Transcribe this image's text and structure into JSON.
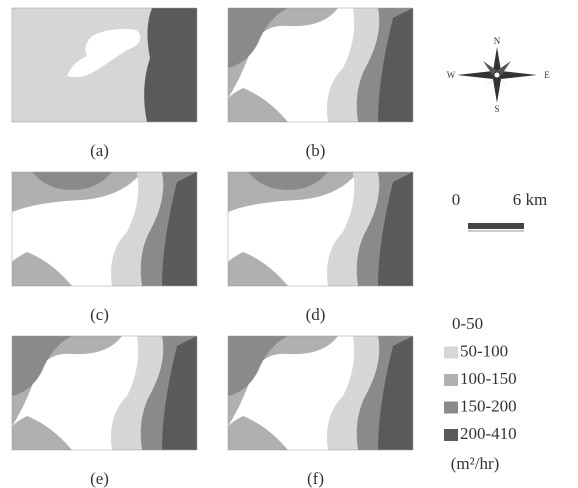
{
  "figure": {
    "panels": [
      {
        "label": "(a)"
      },
      {
        "label": "(b)"
      },
      {
        "label": "(c)"
      },
      {
        "label": "(d)"
      },
      {
        "label": "(e)"
      },
      {
        "label": "(f)"
      }
    ],
    "compass": {
      "north": "N",
      "south": "S",
      "west": "W",
      "east": "E"
    },
    "scale_bar": {
      "start": "0",
      "end": "6 km"
    },
    "legend": {
      "items": [
        "0-50",
        "50-100",
        "100-150",
        "150-200",
        "200-410"
      ],
      "unit": "(m²/hr)"
    }
  }
}
